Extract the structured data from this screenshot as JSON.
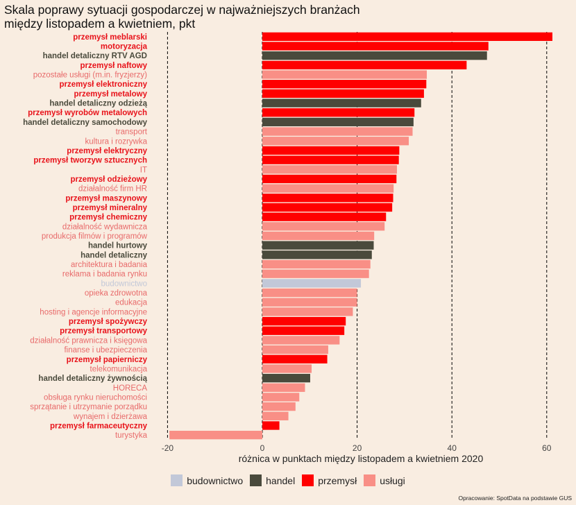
{
  "title_line1": "Skala poprawy sytuacji gospodarczej w najważniejszych branżach",
  "title_line2": "między listopadem a kwietniem, pkt",
  "source": "Opracowanie: SpotData na podstawie GUS",
  "colors": {
    "background": "#f9ede1",
    "budownictwo": "#c2c8d8",
    "handel": "#4a4a3c",
    "przemysł": "#ff0000",
    "usługi": "#f98f86",
    "label_budownictwo": "#c2c8d8",
    "label_handel": "#4a4a3c",
    "label_przemysł": "#e8121a",
    "label_usługi": "#e86a6a"
  },
  "legend": [
    {
      "key": "budownictwo",
      "label": "budownictwo"
    },
    {
      "key": "handel",
      "label": "handel"
    },
    {
      "key": "przemysł",
      "label": "przemysł"
    },
    {
      "key": "usługi",
      "label": "usługi"
    }
  ],
  "chart_data": {
    "type": "bar",
    "orientation": "horizontal",
    "title": "Skala poprawy sytuacji gospodarczej w najważniejszych branżach między listopadem a kwietniem, pkt",
    "xlabel": "różnica w punktach między listopadem a kwietniem 2020",
    "ylabel": "",
    "xlim": [
      -22.5,
      63
    ],
    "xticks": [
      -20,
      0,
      20,
      40,
      60
    ],
    "grid": true,
    "legend_position": "bottom",
    "categories": [
      "przemysł meblarski",
      "motoryzacja",
      "handel detaliczny RTV AGD",
      "przemysł naftowy",
      "pozostałe usługi (m.in. fryzjerzy)",
      "przemysł elektroniczny",
      "przemysł metalowy",
      "handel detaliczny odzieżą",
      "przemysł wyrobów metalowych",
      "handel detaliczny samochodowy",
      "transport",
      "kultura i rozrywka",
      "przemysł elektryczny",
      "przemysł tworzyw sztucznych",
      "IT",
      "przemysł odzieżowy",
      "działalność firm HR",
      "przemysł maszynowy",
      "przemysł mineralny",
      "przemysł chemiczny",
      "działalność wydawnicza",
      "produkcja filmów i programów",
      "handel hurtowy",
      "handel detaliczny",
      "architektura i badania",
      "reklama i badania rynku",
      "budownictwo",
      "opieka zdrowotna",
      "edukacja",
      "hosting i agencje informacyjne",
      "przemysł spożywczy",
      "przemysł transportowy",
      "działalność prawnicza i księgowa",
      "finanse i ubezpieczenia",
      "przemysł papierniczy",
      "telekomunikacja",
      "handel detaliczny żywnością",
      "HORECA",
      "obsługa rynku nieruchomości",
      "sprzątanie i utrzymanie porządku",
      "wynajem i dzierżawa",
      "przemysł farmaceutyczny",
      "turystyka"
    ],
    "values": [
      61.2,
      47.7,
      47.4,
      43.1,
      34.7,
      34.6,
      34.1,
      33.5,
      32.1,
      31.9,
      31.7,
      30.9,
      28.9,
      28.8,
      28.4,
      28.3,
      27.7,
      27.6,
      27.4,
      26.1,
      25.8,
      23.6,
      23.5,
      23.1,
      22.8,
      22.5,
      20.8,
      20.0,
      20.0,
      19.1,
      17.6,
      17.3,
      16.3,
      13.9,
      13.7,
      10.4,
      10.1,
      9.0,
      7.8,
      7.0,
      5.5,
      3.6,
      -19.6
    ],
    "groups": [
      "przemysł",
      "przemysł",
      "handel",
      "przemysł",
      "usługi",
      "przemysł",
      "przemysł",
      "handel",
      "przemysł",
      "handel",
      "usługi",
      "usługi",
      "przemysł",
      "przemysł",
      "usługi",
      "przemysł",
      "usługi",
      "przemysł",
      "przemysł",
      "przemysł",
      "usługi",
      "usługi",
      "handel",
      "handel",
      "usługi",
      "usługi",
      "budownictwo",
      "usługi",
      "usługi",
      "usługi",
      "przemysł",
      "przemysł",
      "usługi",
      "usługi",
      "przemysł",
      "usługi",
      "handel",
      "usługi",
      "usługi",
      "usługi",
      "usługi",
      "przemysł",
      "usługi"
    ]
  }
}
